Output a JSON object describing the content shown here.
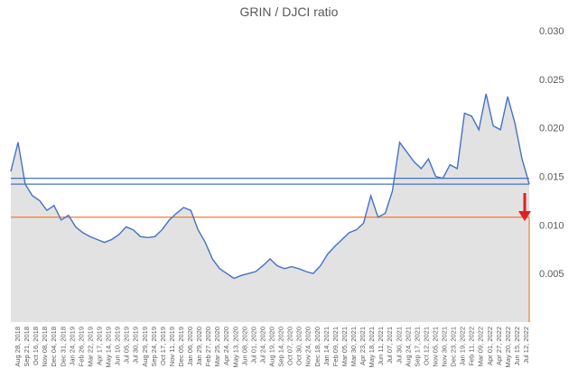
{
  "chart_data": {
    "type": "line",
    "title": "GRIN / DJCI ratio",
    "xlabel": "",
    "ylabel": "",
    "ylim": [
      0,
      0.03
    ],
    "grid": false,
    "legend": "none",
    "yticks": [
      "0.030",
      "0.025",
      "0.020",
      "0.015",
      "0.010",
      "0.005"
    ],
    "x_tick_labels": [
      "Aug 28, 2018",
      "Sep 21, 2018",
      "Oct 16, 2018",
      "Nov 08, 2018",
      "Dec 04, 2018",
      "Dec 31, 2018",
      "Jan 24, 2019",
      "Feb 26, 2019",
      "Mar 22, 2019",
      "Apr 17, 2019",
      "May 14, 2019",
      "Jun 10, 2019",
      "Jul 05, 2019",
      "Jul 30, 2019",
      "Aug 29, 2019",
      "Sep 24, 2019",
      "Oct 17, 2019",
      "Nov 11, 2019",
      "Dec 05, 2019",
      "Jan 06, 2020",
      "Jan 29, 2020",
      "Feb 27, 2020",
      "Mar 25, 2020",
      "Apr 24, 2020",
      "May 13, 2020",
      "Jun 08, 2020",
      "Jul 01, 2020",
      "Jul 24, 2020",
      "Aug 19, 2020",
      "Sep 14, 2020",
      "Oct 07, 2020",
      "Oct 30, 2020",
      "Nov 24, 2020",
      "Dec 18, 2020",
      "Jan 14, 2021",
      "Feb 09, 2021",
      "Mar 05, 2021",
      "Mar 30, 2021",
      "Apr 23, 2021",
      "May 18, 2021",
      "Jun 11, 2021",
      "Jul 07, 2021",
      "Jul 30, 2021",
      "Aug 24, 2021",
      "Sep 17, 2021",
      "Oct 12, 2021",
      "Nov 05, 2021",
      "Nov 30, 2021",
      "Dec 23, 2021",
      "Jan 19, 2022",
      "Feb 11, 2022",
      "Mar 09, 2022",
      "Apr 01, 2022",
      "Apr 27, 2022",
      "May 20, 2022",
      "Jun 15, 2022",
      "Jul 12, 2022"
    ],
    "series": [
      {
        "values": [
          0.0155,
          0.0185,
          0.0142,
          0.013,
          0.0125,
          0.0115,
          0.012,
          0.0105,
          0.011,
          0.0098,
          0.0092,
          0.0088,
          0.0085,
          0.0082,
          0.0085,
          0.009,
          0.0098,
          0.0095,
          0.0088,
          0.0087,
          0.0088,
          0.0095,
          0.0105,
          0.0112,
          0.0118,
          0.0115,
          0.0095,
          0.0082,
          0.0065,
          0.0055,
          0.005,
          0.0045,
          0.0048,
          0.005,
          0.0052,
          0.0058,
          0.0065,
          0.0058,
          0.0055,
          0.0057,
          0.0055,
          0.0052,
          0.005,
          0.0058,
          0.007,
          0.0078,
          0.0085,
          0.0092,
          0.0095,
          0.0102,
          0.013,
          0.0108,
          0.0112,
          0.0135,
          0.0185,
          0.0175,
          0.0165,
          0.0158,
          0.0168,
          0.015,
          0.0148,
          0.0162,
          0.0158,
          0.0215,
          0.0212,
          0.0198,
          0.0235,
          0.0202,
          0.0198,
          0.0232,
          0.0205,
          0.0168,
          0.0142
        ]
      }
    ],
    "series_color": "#4472c4",
    "area_fill_color": "#e2e2e2",
    "reference_lines": [
      {
        "value": 0.0148,
        "color": "#4472c4"
      },
      {
        "value": 0.0142,
        "color": "#4472c4"
      },
      {
        "value": 0.0108,
        "color": "#ed7d31"
      }
    ],
    "annotation": {
      "type": "arrow",
      "direction": "down",
      "color": "#e02020"
    }
  }
}
